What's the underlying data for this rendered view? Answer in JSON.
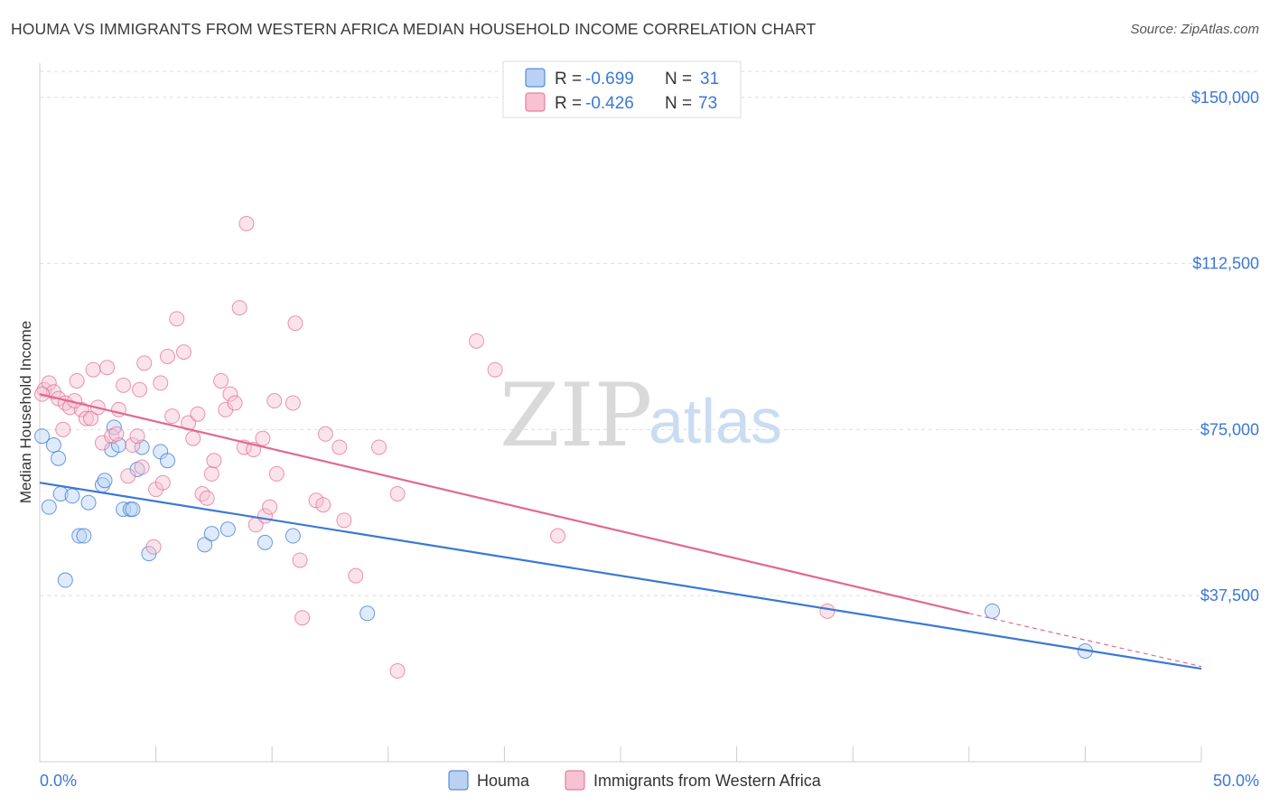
{
  "header": {
    "title": "HOUMA VS IMMIGRANTS FROM WESTERN AFRICA MEDIAN HOUSEHOLD INCOME CORRELATION CHART",
    "source": "Source: ZipAtlas.com"
  },
  "watermark": {
    "zip": "ZIP",
    "atlas": "atlas"
  },
  "legend": {
    "rows": [
      {
        "r_label": "R =",
        "r_value": "-0.699",
        "n_label": "N =",
        "n_value": "31"
      },
      {
        "r_label": "R =",
        "r_value": "-0.426",
        "n_label": "N =",
        "n_value": "73"
      }
    ]
  },
  "bottom_legend": {
    "items": [
      {
        "label": "Houma"
      },
      {
        "label": "Immigrants from Western Africa"
      }
    ]
  },
  "colors": {
    "blue": "#3b78d4",
    "blue_fill": "#b9d2f3",
    "pink": "#e0698f",
    "pink_fill": "#f7c2d2",
    "grid": "#dddddd"
  },
  "chart_data": {
    "type": "scatter",
    "title": "HOUMA VS IMMIGRANTS FROM WESTERN AFRICA MEDIAN HOUSEHOLD INCOME CORRELATION CHART",
    "xlabel": "",
    "ylabel": "Median Household Income",
    "xlim": [
      0,
      50
    ],
    "ylim": [
      0,
      157500
    ],
    "x_tick_labels": [
      "0.0%",
      "50.0%"
    ],
    "y_ticks": [
      37500,
      75000,
      112500,
      150000
    ],
    "y_tick_labels": [
      "$37,500",
      "$75,000",
      "$112,500",
      "$150,000"
    ],
    "grid": true,
    "legend_position": "top-center",
    "series": [
      {
        "name": "Houma",
        "color": "#3b78d4",
        "trend": {
          "x": [
            0,
            50
          ],
          "y": [
            63000,
            21000
          ]
        },
        "points": [
          [
            0.1,
            73500
          ],
          [
            0.4,
            57500
          ],
          [
            0.6,
            71500
          ],
          [
            0.8,
            68500
          ],
          [
            0.9,
            60500
          ],
          [
            1.1,
            41000
          ],
          [
            1.4,
            60000
          ],
          [
            1.7,
            51000
          ],
          [
            1.9,
            51000
          ],
          [
            2.1,
            58500
          ],
          [
            2.7,
            62500
          ],
          [
            2.8,
            63500
          ],
          [
            3.1,
            70500
          ],
          [
            3.2,
            75500
          ],
          [
            3.4,
            71500
          ],
          [
            3.6,
            57000
          ],
          [
            3.9,
            57000
          ],
          [
            4.2,
            66000
          ],
          [
            4.4,
            71000
          ],
          [
            4.7,
            47000
          ],
          [
            5.2,
            70000
          ],
          [
            5.5,
            68000
          ],
          [
            7.1,
            49000
          ],
          [
            7.4,
            51500
          ],
          [
            8.1,
            52500
          ],
          [
            9.7,
            49500
          ],
          [
            10.9,
            51000
          ],
          [
            14.1,
            33500
          ],
          [
            41.0,
            34000
          ],
          [
            45.0,
            25000
          ],
          [
            4.0,
            57000
          ]
        ]
      },
      {
        "name": "Immigrants from Western Africa",
        "color": "#e0698f",
        "trend": {
          "x": [
            0,
            40
          ],
          "y": [
            83000,
            33500
          ]
        },
        "trend_dashed": {
          "x": [
            40,
            50
          ],
          "y": [
            33500,
            21500
          ]
        },
        "points": [
          [
            0.2,
            84000
          ],
          [
            0.4,
            85500
          ],
          [
            0.6,
            83500
          ],
          [
            0.8,
            82000
          ],
          [
            1.0,
            75000
          ],
          [
            1.1,
            81000
          ],
          [
            1.3,
            80000
          ],
          [
            1.6,
            86000
          ],
          [
            1.8,
            79500
          ],
          [
            2.0,
            77500
          ],
          [
            2.2,
            77500
          ],
          [
            2.3,
            88500
          ],
          [
            2.5,
            80000
          ],
          [
            2.7,
            72000
          ],
          [
            2.9,
            89000
          ],
          [
            3.1,
            73500
          ],
          [
            3.3,
            74000
          ],
          [
            3.4,
            79500
          ],
          [
            3.6,
            85000
          ],
          [
            3.8,
            64500
          ],
          [
            4.0,
            71500
          ],
          [
            4.2,
            73500
          ],
          [
            4.3,
            84000
          ],
          [
            4.4,
            66500
          ],
          [
            4.5,
            90000
          ],
          [
            4.9,
            48500
          ],
          [
            5.0,
            61500
          ],
          [
            5.2,
            85500
          ],
          [
            5.3,
            63000
          ],
          [
            5.5,
            91500
          ],
          [
            5.7,
            78000
          ],
          [
            5.9,
            100000
          ],
          [
            6.2,
            92500
          ],
          [
            6.4,
            76500
          ],
          [
            6.6,
            73000
          ],
          [
            6.8,
            78500
          ],
          [
            7.0,
            60500
          ],
          [
            7.2,
            59500
          ],
          [
            7.4,
            65000
          ],
          [
            7.5,
            68000
          ],
          [
            7.8,
            86000
          ],
          [
            8.0,
            79500
          ],
          [
            8.2,
            83000
          ],
          [
            8.4,
            81000
          ],
          [
            8.6,
            102500
          ],
          [
            8.8,
            71000
          ],
          [
            8.9,
            121500
          ],
          [
            9.2,
            70500
          ],
          [
            9.3,
            53500
          ],
          [
            9.6,
            73000
          ],
          [
            9.7,
            55500
          ],
          [
            9.9,
            57500
          ],
          [
            10.1,
            81500
          ],
          [
            10.2,
            65000
          ],
          [
            10.9,
            81000
          ],
          [
            11.0,
            99000
          ],
          [
            11.2,
            45500
          ],
          [
            11.3,
            32500
          ],
          [
            11.9,
            59000
          ],
          [
            12.2,
            58000
          ],
          [
            12.3,
            74000
          ],
          [
            12.9,
            71000
          ],
          [
            13.1,
            54500
          ],
          [
            13.6,
            42000
          ],
          [
            14.6,
            71000
          ],
          [
            15.4,
            60500
          ],
          [
            15.4,
            20500
          ],
          [
            18.8,
            95000
          ],
          [
            19.6,
            88500
          ],
          [
            22.3,
            51000
          ],
          [
            33.9,
            34000
          ],
          [
            0.1,
            83000
          ],
          [
            1.5,
            81500
          ]
        ]
      }
    ]
  }
}
